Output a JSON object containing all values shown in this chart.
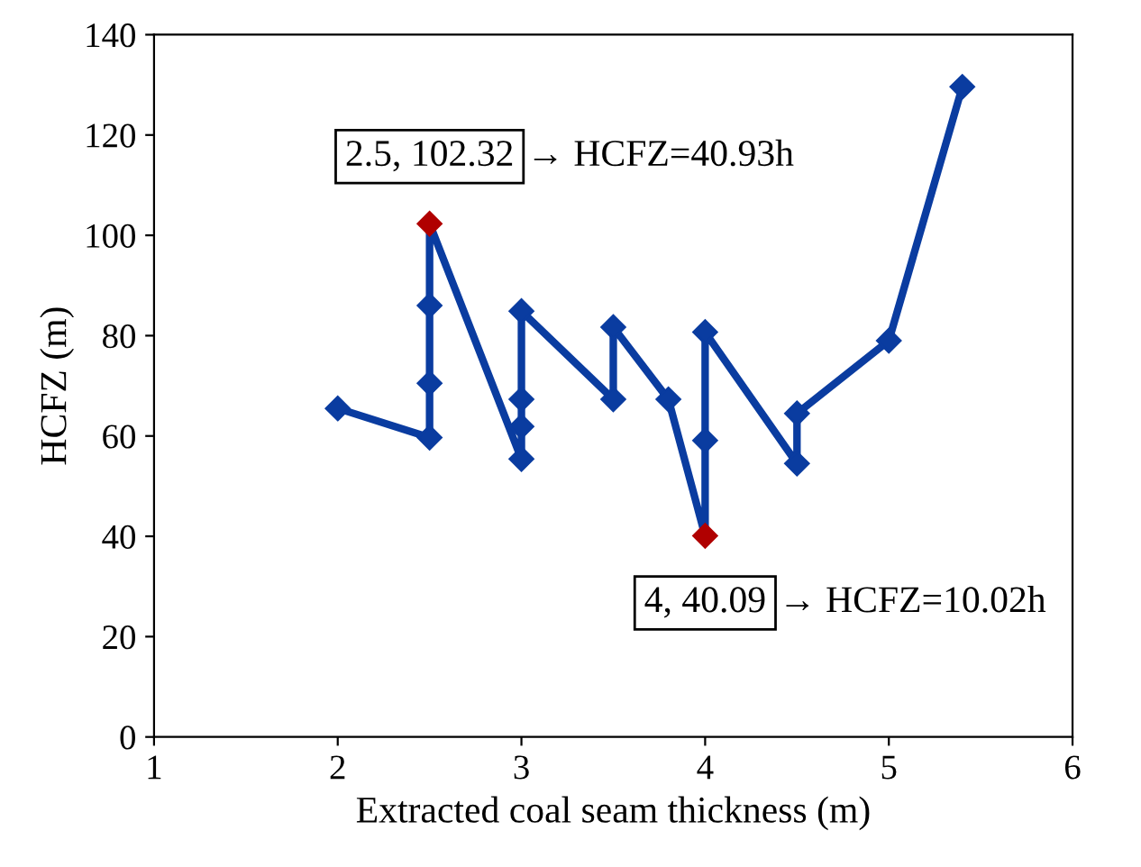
{
  "chart_data": {
    "type": "line",
    "xlabel": "Extracted coal seam thickness (m)",
    "ylabel": "HCFZ (m)",
    "x": [
      2,
      2.5,
      2.5,
      2.5,
      2.5,
      3,
      3,
      3,
      3,
      3.5,
      3.5,
      3.8,
      4,
      4,
      4,
      4.5,
      4.5,
      5,
      5.4
    ],
    "series": [
      {
        "color": "#0a3ca0",
        "values": [
          65.5,
          59.7,
          70.5,
          86,
          102.32,
          55.4,
          61.9,
          67.3,
          84.9,
          67.3,
          81.7,
          67.3,
          40.09,
          59.1,
          80.7,
          54.5,
          64.5,
          79,
          129.6
        ],
        "colors": [
          "#0a3ca0",
          "#0a3ca0",
          "#0a3ca0",
          "#0a3ca0",
          "#b00000",
          "#0a3ca0",
          "#0a3ca0",
          "#0a3ca0",
          "#0a3ca0",
          "#0a3ca0",
          "#0a3ca0",
          "#0a3ca0",
          "#b00000",
          "#0a3ca0",
          "#0a3ca0",
          "#0a3ca0",
          "#0a3ca0",
          "#0a3ca0",
          "#0a3ca0"
        ]
      }
    ],
    "annotations": [
      {
        "text": "2.5, 102.32",
        "x": 2.5,
        "y": 102.32
      },
      "→ HCFZ=40.93h",
      {
        "text": "4, 40.09",
        "x": 4,
        "y": 40.09
      },
      "→ HCFZ=10.02h"
    ],
    "xlim": [
      1,
      6
    ],
    "xticks": [
      1,
      2,
      3,
      4,
      5,
      6
    ],
    "ylim": [
      0,
      140
    ],
    "yticks": [
      0,
      20,
      40,
      60,
      80,
      100,
      120,
      140
    ],
    "marker": "diamond",
    "line_style": "solid",
    "grid": false,
    "legend": false
  }
}
